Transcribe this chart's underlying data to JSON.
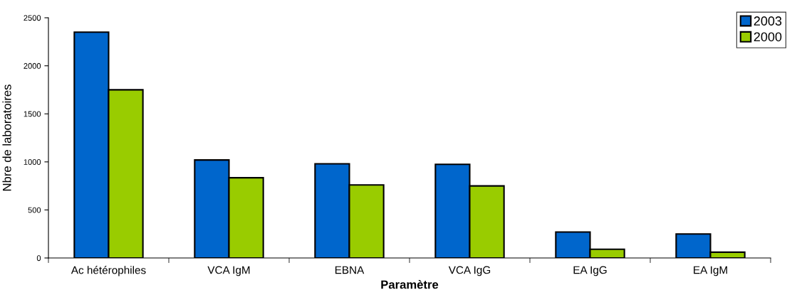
{
  "chart_data": {
    "type": "bar",
    "xlabel": "Paramètre",
    "ylabel": "Nbre de laboratoires",
    "categories": [
      "Ac hétérophiles",
      "VCA IgM",
      "EBNA",
      "VCA IgG",
      "EA IgG",
      "EA IgM"
    ],
    "series": [
      {
        "name": "2003",
        "color": "#0066cc",
        "values": [
          2350,
          1020,
          980,
          975,
          270,
          250
        ]
      },
      {
        "name": "2000",
        "color": "#99cc00",
        "values": [
          1750,
          835,
          760,
          750,
          90,
          60
        ]
      }
    ],
    "ylim": [
      0,
      2500
    ],
    "yticks": [
      0,
      500,
      1000,
      1500,
      2000,
      2500
    ],
    "grid": false,
    "legend": "top right"
  }
}
